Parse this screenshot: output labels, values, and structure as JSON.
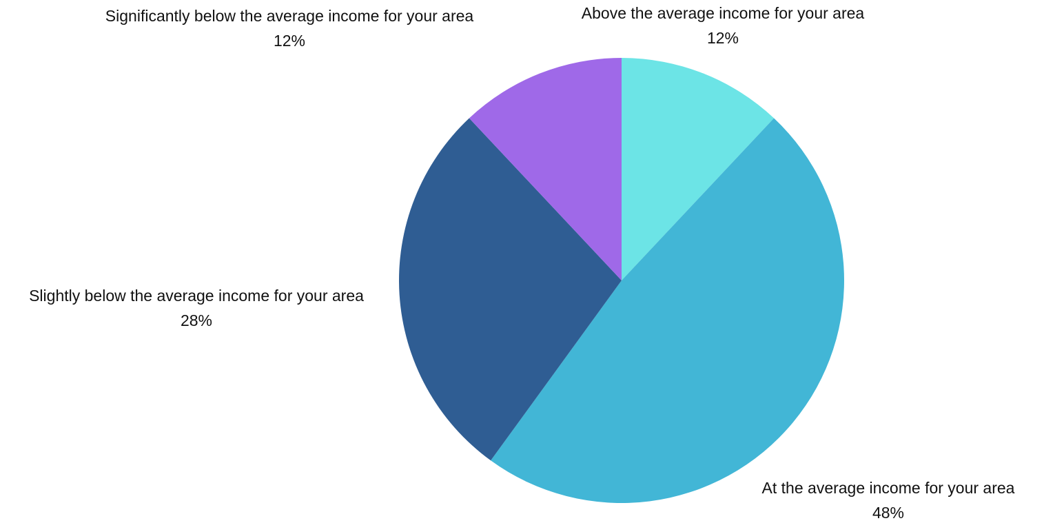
{
  "chart_data": {
    "type": "pie",
    "start_angle_deg": 0,
    "direction": "clockwise",
    "slices": [
      {
        "label": "Above the average income for your area",
        "value": 12,
        "value_label": "12%",
        "color": "#6ce4e6"
      },
      {
        "label": "At the average income for your area",
        "value": 48,
        "value_label": "48%",
        "color": "#42b6d6"
      },
      {
        "label": "Slightly below the average income for your area",
        "value": 28,
        "value_label": "28%",
        "color": "#2f5d93"
      },
      {
        "label": "Significantly below the average income for your area",
        "value": 12,
        "value_label": "12%",
        "color": "#9f69e8"
      }
    ],
    "legend": "none"
  }
}
